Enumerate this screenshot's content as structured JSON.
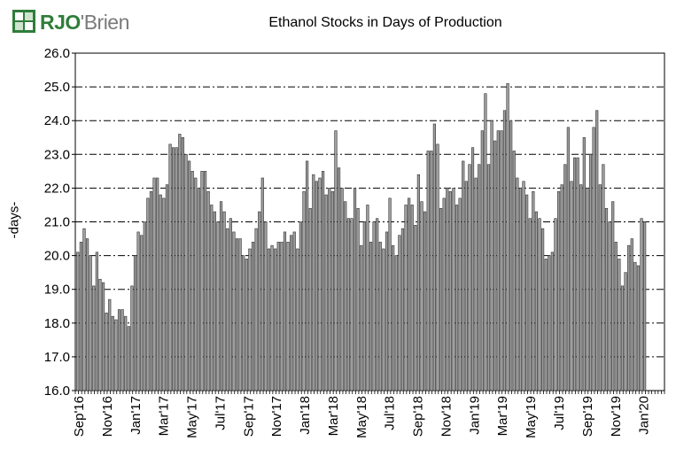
{
  "brand": {
    "logo_text_a": "RJO",
    "logo_text_b": "'Brien",
    "colors": {
      "green": "#2f7d3a",
      "gray": "#7a7a7a"
    }
  },
  "chart_data": {
    "type": "bar",
    "title": "Ethanol Stocks in Days of Production",
    "ylabel": "-days-",
    "xlabel": "",
    "ylim": [
      16.0,
      26.0
    ],
    "yticks": [
      "16.0",
      "17.0",
      "18.0",
      "19.0",
      "20.0",
      "21.0",
      "22.0",
      "23.0",
      "24.0",
      "25.0",
      "26.0"
    ],
    "xticks": [
      "Sep'16",
      "Nov'16",
      "Jan'17",
      "Mar'17",
      "May'17",
      "Jul'17",
      "Sep'17",
      "Nov'17",
      "Jan'18",
      "Mar'18",
      "May'18",
      "Jul'18",
      "Sep'18",
      "Nov'18",
      "Jan'19",
      "Mar'19",
      "May'19",
      "Jul'19",
      "Sep'19",
      "Nov'19",
      "Jan'20"
    ],
    "grid": "horizontal dash-dot",
    "bar_color": "#a0a0a0",
    "values": [
      20.1,
      20.4,
      20.8,
      20.5,
      20.0,
      19.1,
      20.1,
      19.3,
      19.2,
      18.3,
      18.7,
      18.2,
      18.1,
      18.4,
      18.4,
      18.2,
      17.9,
      19.1,
      20.0,
      20.7,
      20.6,
      21.0,
      21.7,
      21.9,
      22.3,
      22.3,
      21.8,
      21.7,
      22.1,
      23.3,
      23.2,
      23.2,
      23.6,
      23.5,
      23.0,
      22.8,
      22.5,
      22.3,
      22.0,
      22.5,
      22.5,
      21.9,
      21.5,
      21.3,
      21.0,
      21.6,
      21.3,
      20.8,
      21.1,
      20.7,
      20.5,
      20.5,
      20.0,
      19.9,
      20.2,
      20.4,
      20.8,
      21.3,
      22.3,
      21.0,
      20.2,
      20.3,
      20.2,
      20.4,
      20.4,
      20.7,
      20.4,
      20.6,
      20.7,
      20.2,
      21.0,
      21.9,
      22.8,
      21.4,
      22.4,
      22.2,
      22.3,
      22.5,
      21.8,
      22.0,
      21.9,
      23.7,
      22.6,
      22.0,
      21.6,
      21.1,
      21.1,
      22.0,
      21.4,
      20.3,
      21.0,
      21.5,
      20.4,
      21.0,
      21.1,
      20.4,
      20.2,
      20.7,
      21.7,
      20.3,
      20.0,
      20.6,
      20.8,
      21.5,
      21.7,
      21.5,
      20.9,
      22.4,
      21.6,
      21.3,
      23.1,
      23.1,
      23.9,
      23.3,
      21.4,
      21.7,
      22.0,
      21.9,
      22.0,
      21.5,
      21.7,
      22.8,
      22.2,
      22.7,
      23.2,
      22.3,
      22.7,
      23.7,
      24.8,
      22.7,
      24.0,
      23.4,
      23.7,
      23.7,
      24.3,
      25.1,
      24.0,
      23.1,
      22.3,
      22.0,
      22.2,
      21.8,
      21.1,
      21.9,
      21.3,
      21.1,
      20.8,
      19.9,
      20.0,
      20.1,
      21.1,
      21.9,
      22.1,
      22.7,
      23.8,
      22.2,
      22.9,
      22.9,
      22.1,
      23.5,
      22.0,
      23.0,
      23.8,
      24.3,
      22.1,
      22.7,
      21.4,
      21.0,
      21.6,
      20.4,
      19.9,
      19.1,
      19.5,
      20.3,
      20.5,
      19.8,
      19.7,
      21.1,
      21.0
    ]
  }
}
